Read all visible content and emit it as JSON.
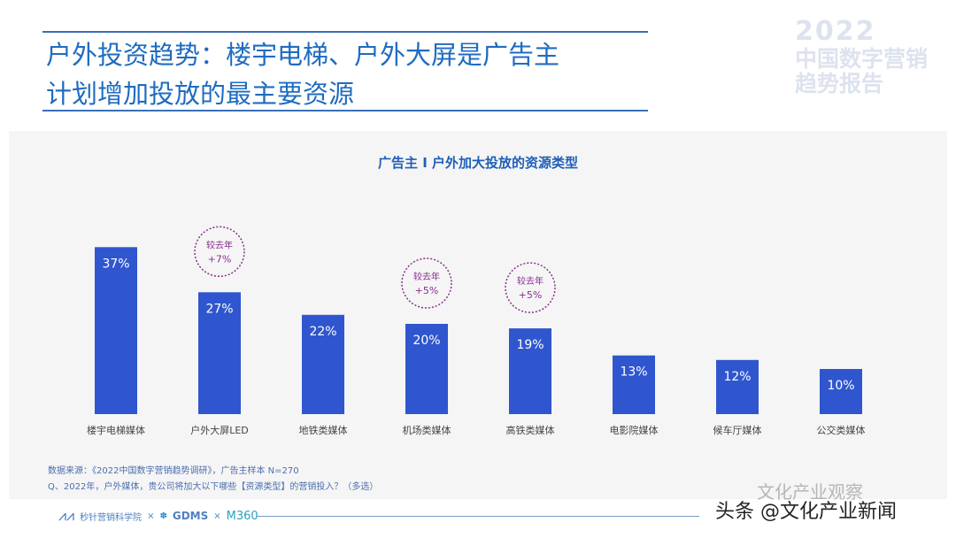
{
  "slide": {
    "title_line1": "户外投资趋势：楼宇电梯、户外大屏是广告主",
    "title_line2": "计划增加投放的最主要资源",
    "watermark_year": "2022",
    "watermark_line1": "中国数字营销",
    "watermark_line2": "趋势报告"
  },
  "chart_data": {
    "type": "bar",
    "title": "广告主 I 户外加大投放的资源类型",
    "categories": [
      "楼宇电梯媒体",
      "户外大屏LED",
      "地铁类媒体",
      "机场类媒体",
      "高铁类媒体",
      "电影院媒体",
      "候车厅媒体",
      "公交类媒体"
    ],
    "values": [
      37,
      27,
      22,
      20,
      19,
      13,
      12,
      10
    ],
    "labels": [
      "37%",
      "27%",
      "22%",
      "20%",
      "19%",
      "13%",
      "12%",
      "10%"
    ],
    "unit": "%",
    "bar_color": "#2f56cf",
    "annotations": [
      {
        "category": "户外大屏LED",
        "line1": "较去年",
        "line2": "+7%"
      },
      {
        "category": "机场类媒体",
        "line1": "较去年",
        "line2": "+5%"
      },
      {
        "category": "高铁类媒体",
        "line1": "较去年",
        "line2": "+5%"
      }
    ],
    "annotation_color": "#8b2f8f"
  },
  "notes": {
    "source": "数据来源：《2022中国数字营销趋势调研》，广告主样本 N=270",
    "question": "Q、2022年，户外媒体，贵公司将加大以下哪些【资源类型】的营销投入？（多选）"
  },
  "footer": {
    "org1": "秒针营销科学院",
    "sep": "×",
    "org2": "GDMS",
    "org3": "M360"
  },
  "overlay": {
    "watermark": "头条 @文化产业新闻",
    "faded": "文化产业观察"
  }
}
